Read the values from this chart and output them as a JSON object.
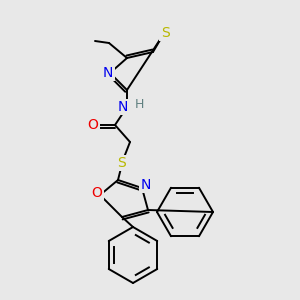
{
  "bg_color": "#e8e8e8",
  "line_color": "#000000",
  "atom_colors": {
    "S": "#b8b800",
    "N": "#0000ee",
    "O": "#ee0000",
    "H": "#608080",
    "C": "#000000"
  },
  "font_size": 10,
  "line_width": 1.4,
  "fig_width": 3.0,
  "fig_height": 3.0,
  "dpi": 100
}
